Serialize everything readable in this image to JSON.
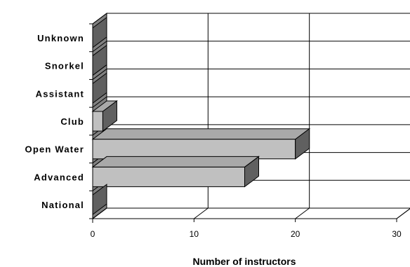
{
  "chart_data": {
    "type": "bar",
    "orientation": "horizontal",
    "style": "3d",
    "categories": [
      "Unknown",
      "Snorkel",
      "Assistant",
      "Club",
      "Open Water",
      "Advanced",
      "National"
    ],
    "values": [
      0,
      0,
      0,
      1,
      20,
      15,
      0
    ],
    "xlabel": "Number of instructors",
    "ylabel": "",
    "xlim": [
      0,
      30
    ],
    "xticks": [
      "0",
      "10",
      "20",
      "30"
    ],
    "grid": true,
    "legend": "none",
    "colors": {
      "bar_front": "#c0c0c0",
      "bar_top": "#a9a9a9",
      "bar_side": "#606060",
      "wall": "#808080",
      "grid": "#000000"
    }
  }
}
